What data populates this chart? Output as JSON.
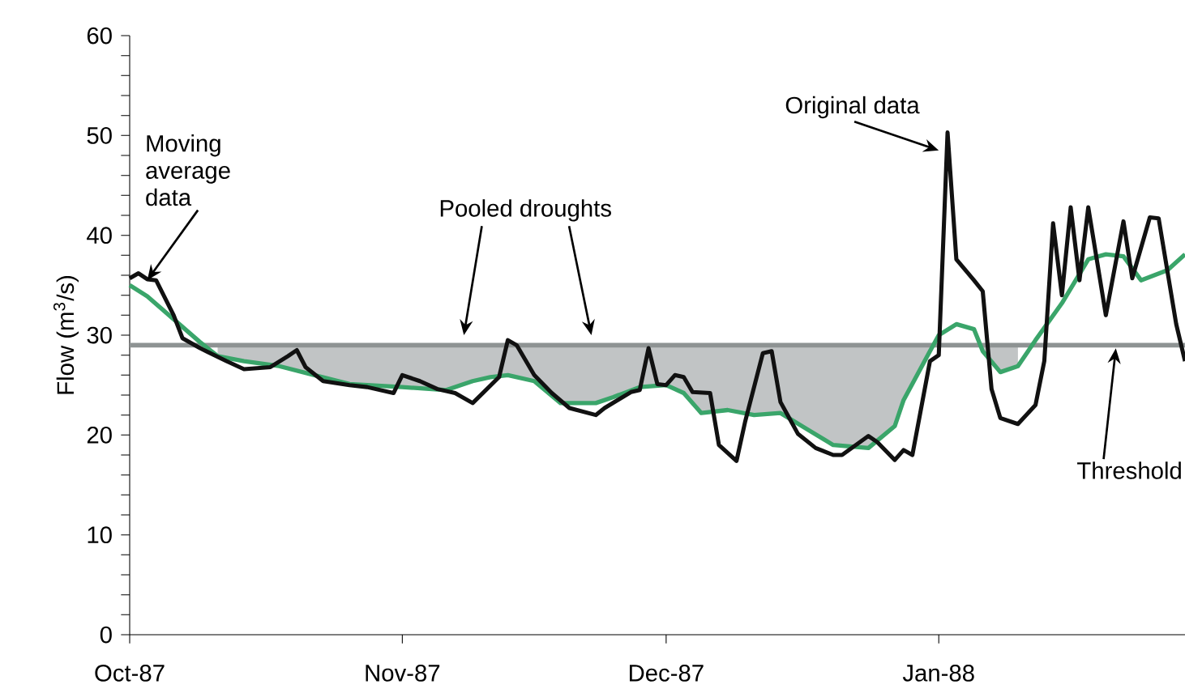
{
  "chart_data": {
    "type": "line",
    "ylabel": "Flow (m$^{3}$/s)",
    "xlim": [
      "1987-10-01",
      "1988-01-29"
    ],
    "xticks": [
      {
        "value": "1987-10-01",
        "label": "Oct-87"
      },
      {
        "value": "1987-11-01",
        "label": "Nov-87"
      },
      {
        "value": "1987-12-01",
        "label": "Dec-87"
      },
      {
        "value": "1988-01-01",
        "label": "Jan-88"
      }
    ],
    "ylim": [
      0,
      60
    ],
    "yticks": [
      0,
      10,
      20,
      30,
      40,
      50,
      60
    ],
    "grid": false,
    "marker": "none",
    "line_style": "solid",
    "ref_lines": [
      {
        "axis": "y",
        "value": 29,
        "label": "Threshold",
        "color": "#8e9393"
      }
    ],
    "annotations": [
      {
        "text": "Moving average data",
        "x": "1987-10-03",
        "y": 35.5
      },
      "Pooled droughts",
      {
        "text": "Original data",
        "x": "1988-01-01",
        "y": 48.5
      }
    ],
    "series": [
      {
        "color": "#3aa56a",
        "x": [
          "1987-10-01",
          "1987-10-03",
          "1987-10-06",
          "1987-10-09",
          "1987-10-11",
          "1987-10-14",
          "1987-10-18",
          "1987-10-22",
          "1987-10-26",
          "1987-11-01",
          "1987-11-06",
          "1987-11-09",
          "1987-11-11",
          "1987-11-13",
          "1987-11-16",
          "1987-11-19",
          "1987-11-23",
          "1987-11-25",
          "1987-11-28",
          "1987-12-01",
          "1987-12-03",
          "1987-12-05",
          "1987-12-08",
          "1987-12-11",
          "1987-12-14",
          "1987-12-17",
          "1987-12-20",
          "1987-12-24",
          "1987-12-27",
          "1987-12-28",
          "1987-12-31",
          "1988-01-01",
          "1988-01-03",
          "1988-01-05",
          "1988-01-06",
          "1988-01-08",
          "1988-01-10",
          "1988-01-12",
          "1988-01-15",
          "1988-01-18",
          "1988-01-20",
          "1988-01-22",
          "1988-01-24",
          "1988-01-27",
          "1988-01-29"
        ],
        "values": [
          35,
          33.9,
          31.6,
          29.3,
          27.9,
          27.4,
          26.9,
          26,
          25.1,
          24.8,
          24.5,
          25.4,
          25.8,
          26,
          25.4,
          23.2,
          23.2,
          23.8,
          24.8,
          25,
          24.2,
          22.2,
          22.5,
          22,
          22.2,
          20.6,
          19,
          18.7,
          20.9,
          23.5,
          28.4,
          30,
          31.1,
          30.6,
          28.4,
          26.3,
          26.9,
          29.5,
          33.2,
          37.6,
          38.1,
          37.9,
          35.5,
          36.5,
          38.1
        ],
        "lower": [
          null,
          null,
          null,
          null,
          27.9,
          27.4,
          26.9,
          26,
          25.1,
          24.8,
          24.5,
          25.4,
          25.8,
          26,
          25.4,
          23.2,
          23.2,
          23.8,
          24.8,
          25,
          24.2,
          22.2,
          22.5,
          22,
          22.2,
          20.6,
          19,
          18.7,
          20.9,
          23.5,
          28.4,
          null,
          null,
          null,
          28.4,
          26.3,
          26.9,
          null,
          null,
          null,
          null,
          null,
          null,
          null,
          null
        ],
        "upper": [
          null,
          null,
          null,
          null,
          29,
          29,
          29,
          29,
          29,
          29,
          29,
          29,
          29,
          29,
          29,
          29,
          29,
          29,
          29,
          29,
          29,
          29,
          29,
          29,
          29,
          29,
          29,
          29,
          29,
          29,
          29,
          null,
          null,
          null,
          29,
          29,
          29,
          null,
          null,
          null,
          null,
          null,
          null,
          null,
          null
        ]
      },
      {
        "color": "#111111",
        "x": [
          "1987-10-01",
          "1987-10-02",
          "1987-10-03",
          "1987-10-04",
          "1987-10-06",
          "1987-10-07",
          "1987-10-09",
          "1987-10-12",
          "1987-10-14",
          "1987-10-17",
          "1987-10-19",
          "1987-10-20",
          "1987-10-21",
          "1987-10-23",
          "1987-10-26",
          "1987-10-28",
          "1987-10-31",
          "1987-11-01",
          "1987-11-03",
          "1987-11-05",
          "1987-11-07",
          "1987-11-09",
          "1987-11-12",
          "1987-11-13",
          "1987-11-14",
          "1987-11-16",
          "1987-11-18",
          "1987-11-20",
          "1987-11-23",
          "1987-11-24",
          "1987-11-27",
          "1987-11-28",
          "1987-11-29",
          "1987-11-30",
          "1987-12-01",
          "1987-12-02",
          "1987-12-03",
          "1987-12-04",
          "1987-12-06",
          "1987-12-07",
          "1987-12-09",
          "1987-12-10",
          "1987-12-12",
          "1987-12-13",
          "1987-12-14",
          "1987-12-16",
          "1987-12-18",
          "1987-12-20",
          "1987-12-21",
          "1987-12-24",
          "1987-12-25",
          "1987-12-27",
          "1987-12-28",
          "1987-12-29",
          "1987-12-31",
          "1988-01-01",
          "1988-01-02",
          "1988-01-03",
          "1988-01-05",
          "1988-01-06",
          "1988-01-07",
          "1988-01-08",
          "1988-01-10",
          "1988-01-12",
          "1988-01-13",
          "1988-01-14",
          "1988-01-15",
          "1988-01-16",
          "1988-01-17",
          "1988-01-18",
          "1988-01-20",
          "1988-01-22",
          "1988-01-23",
          "1988-01-25",
          "1988-01-26",
          "1988-01-28",
          "1988-01-29"
        ],
        "values": [
          35.7,
          36.2,
          35.6,
          35.5,
          32,
          29.7,
          28.7,
          27.4,
          26.6,
          26.8,
          27.9,
          28.5,
          26.8,
          25.4,
          25,
          24.8,
          24.2,
          26,
          25.4,
          24.6,
          24.2,
          23.2,
          25.8,
          29.5,
          29,
          26,
          24.2,
          22.7,
          22,
          22.7,
          24.3,
          24.5,
          28.7,
          25.1,
          25,
          26,
          25.8,
          24.3,
          24.2,
          19,
          17.4,
          21.4,
          28.2,
          28.4,
          23.3,
          20.1,
          18.7,
          18,
          18,
          19.9,
          19.3,
          17.5,
          18.5,
          18,
          27.4,
          28,
          50.3,
          37.6,
          35.5,
          34.4,
          24.6,
          21.7,
          21.1,
          23,
          27.4,
          41.2,
          34,
          42.8,
          35.5,
          42.8,
          32,
          41.4,
          35.7,
          41.8,
          41.7,
          31.1,
          27.4
        ]
      }
    ]
  }
}
